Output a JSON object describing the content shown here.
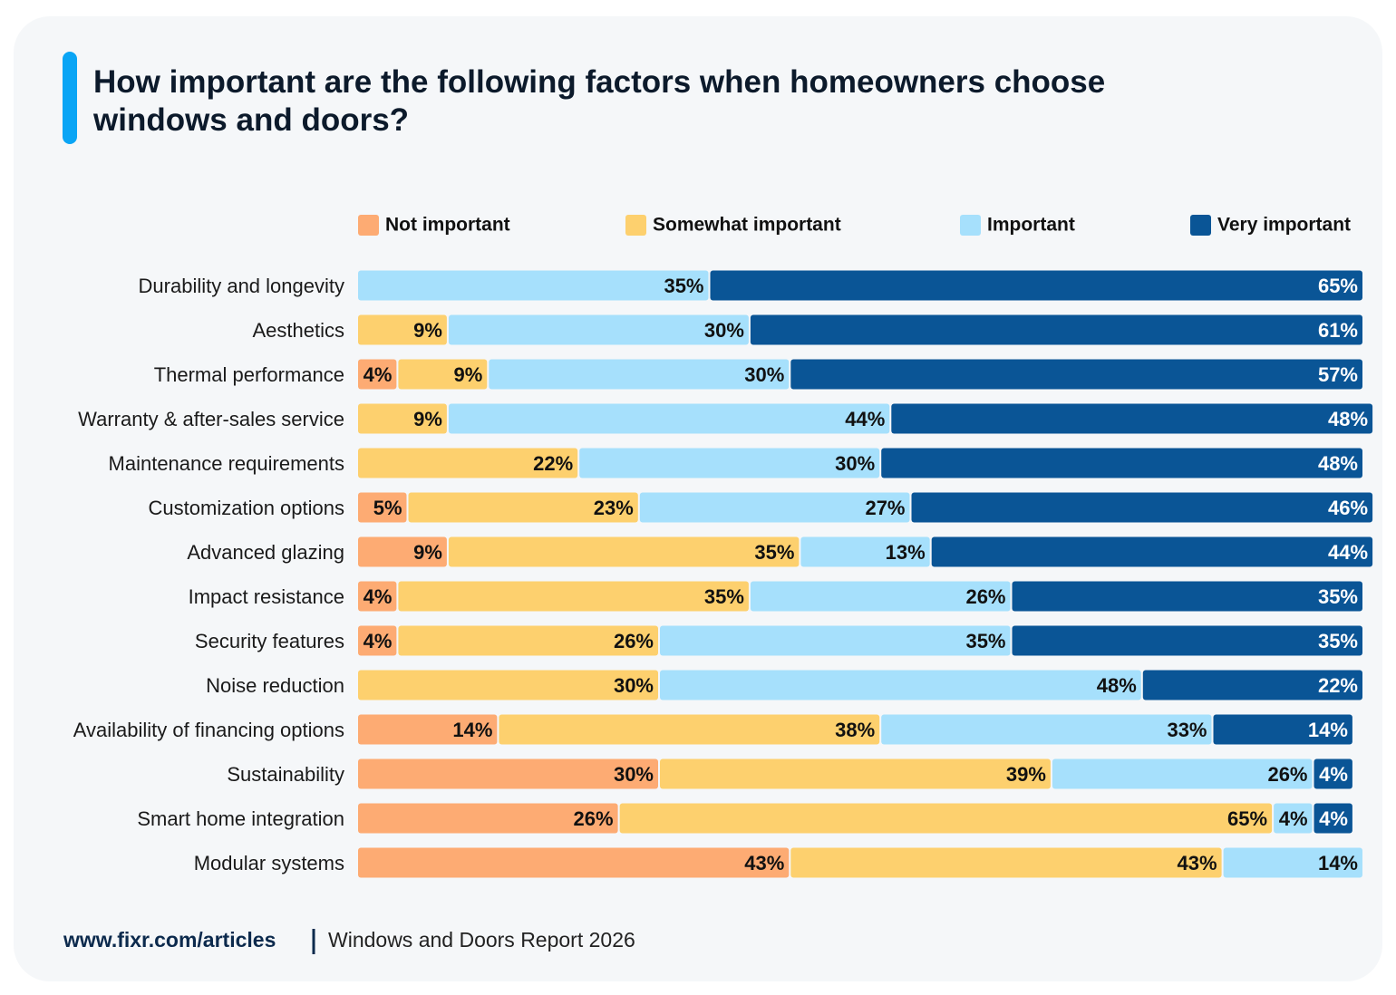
{
  "chart_data": {
    "type": "stacked-bar-horizontal",
    "title": "How important are the following factors when homeowners choose windows and doors?",
    "categories": [
      "Durability and longevity",
      "Aesthetics",
      "Thermal performance",
      "Warranty & after-sales service",
      "Maintenance requirements",
      "Customization options",
      "Advanced glazing",
      "Impact resistance",
      "Security features",
      "Noise reduction",
      "Availability of financing options",
      "Sustainability",
      "Smart home integration",
      "Modular systems"
    ],
    "xlim": [
      0,
      100
    ],
    "series": [
      {
        "name": "Not important",
        "color": "#fdab73",
        "label_color": "#111111",
        "values": [
          null,
          null,
          4,
          null,
          null,
          5,
          9,
          4,
          4,
          null,
          14,
          30,
          26,
          43
        ],
        "value_labels": [
          null,
          null,
          "4%",
          null,
          null,
          "5%",
          "9%",
          "4%",
          "4%",
          null,
          "14%",
          "30%",
          "26%",
          "43%"
        ]
      },
      {
        "name": "Somewhat important",
        "color": "#fdd06e",
        "label_color": "#111111",
        "values": [
          null,
          9,
          9,
          9,
          22,
          23,
          35,
          35,
          26,
          30,
          38,
          39,
          65,
          43
        ],
        "value_labels": [
          null,
          "9%",
          "9%",
          "9%",
          "22%",
          "23%",
          "35%",
          "35%",
          "26%",
          "30%",
          "38%",
          "39%",
          "65%",
          "43%"
        ]
      },
      {
        "name": "Important",
        "color": "#a6e0fc",
        "label_color": "#111111",
        "values": [
          35,
          30,
          30,
          44,
          30,
          27,
          13,
          26,
          35,
          48,
          33,
          26,
          4,
          14
        ],
        "value_labels": [
          "35%",
          "30%",
          "30%",
          "44%",
          "30%",
          "27%",
          "13%",
          "26%",
          "35%",
          "48%",
          "33%",
          "26%",
          "4%",
          "14%"
        ]
      },
      {
        "name": "Very important",
        "color": "#0a5596",
        "label_color": "#ffffff",
        "values": [
          65,
          61,
          57,
          48,
          48,
          46,
          44,
          35,
          35,
          22,
          14,
          4,
          4,
          null
        ],
        "value_labels": [
          "65%",
          "61%",
          "57%",
          "48%",
          "48%",
          "46%",
          "44%",
          "35%",
          "35%",
          "22%",
          "14%",
          "4%",
          "4%",
          null
        ]
      }
    ]
  },
  "footer": {
    "source": "www.fixr.com/articles",
    "report": "Windows and Doors Report 2026"
  }
}
